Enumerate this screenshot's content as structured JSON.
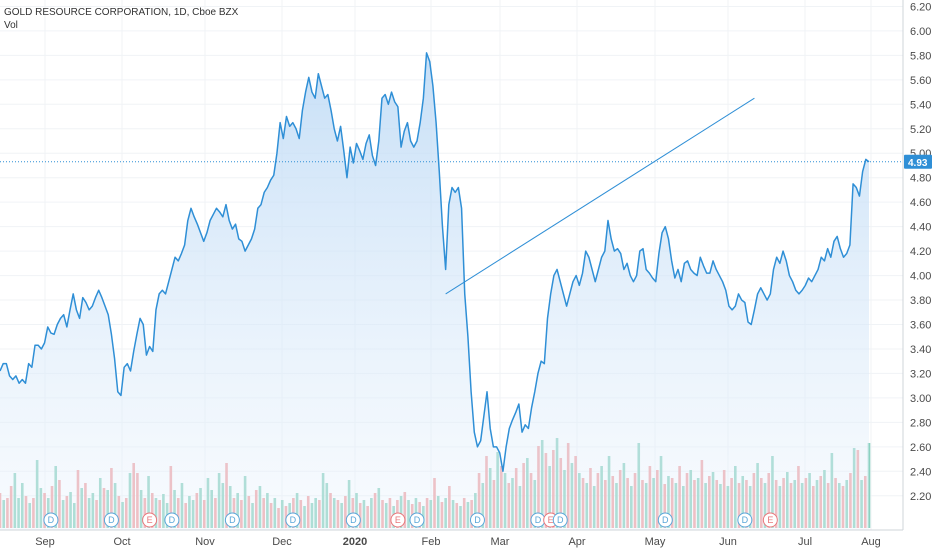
{
  "header": {
    "title": "GOLD RESOURCE CORPORATION, 1D, Cboe BZX",
    "subtitle": "Vol"
  },
  "colors": {
    "line": "#2f8fd6",
    "fill": "#cfe4f8",
    "vol_up": "#7fcdb9",
    "vol_down": "#f0999b",
    "current_tag": "#2f8fd6"
  },
  "chart_data": {
    "type": "area",
    "ylim": [
      2.1,
      6.22
    ],
    "ytick_values": [
      2.2,
      2.4,
      2.6,
      2.8,
      3.0,
      3.2,
      3.4,
      3.6,
      3.8,
      4.0,
      4.2,
      4.4,
      4.6,
      4.8,
      5.0,
      5.2,
      5.4,
      5.6,
      5.8,
      6.0,
      6.2
    ],
    "ytick_labels": [
      "2.20",
      "2.40",
      "2.60",
      "2.80",
      "3.00",
      "3.20",
      "3.40",
      "3.60",
      "3.80",
      "4.00",
      "4.20",
      "4.40",
      "4.60",
      "4.80",
      "5.00",
      "5.20",
      "5.40",
      "5.60",
      "5.80",
      "6.00",
      "6.20"
    ],
    "month_labels": [
      "Sep",
      "Oct",
      "Nov",
      "Dec",
      "2020",
      "Feb",
      "Mar",
      "Apr",
      "May",
      "Jun",
      "Jul",
      "Aug"
    ],
    "current_price": 4.93,
    "current_price_label": "4.93",
    "trendline": {
      "from": {
        "index": 140,
        "value": 3.85
      },
      "to": {
        "index": 237,
        "value": 5.45
      }
    },
    "close": [
      3.22,
      3.28,
      3.28,
      3.18,
      3.15,
      3.18,
      3.12,
      3.15,
      3.12,
      3.28,
      3.25,
      3.43,
      3.43,
      3.4,
      3.45,
      3.58,
      3.53,
      3.52,
      3.6,
      3.65,
      3.68,
      3.58,
      3.72,
      3.85,
      3.72,
      3.65,
      3.82,
      3.78,
      3.72,
      3.75,
      3.82,
      3.88,
      3.82,
      3.75,
      3.68,
      3.52,
      3.32,
      3.05,
      3.02,
      3.25,
      3.28,
      3.22,
      3.38,
      3.52,
      3.65,
      3.6,
      3.35,
      3.42,
      3.38,
      3.72,
      3.85,
      3.88,
      3.85,
      3.95,
      4.05,
      4.15,
      4.12,
      4.18,
      4.25,
      4.45,
      4.55,
      4.48,
      4.42,
      4.35,
      4.28,
      4.35,
      4.45,
      4.5,
      4.55,
      4.52,
      4.48,
      4.58,
      4.45,
      4.38,
      4.42,
      4.3,
      4.28,
      4.2,
      4.25,
      4.3,
      4.38,
      4.55,
      4.58,
      4.68,
      4.72,
      4.78,
      4.82,
      5.0,
      5.25,
      5.12,
      5.3,
      5.22,
      5.25,
      5.2,
      5.12,
      5.35,
      5.5,
      5.62,
      5.5,
      5.45,
      5.65,
      5.55,
      5.45,
      5.48,
      5.35,
      5.2,
      5.1,
      5.22,
      5.02,
      4.8,
      5.05,
      4.92,
      5.08,
      5.02,
      4.95,
      5.08,
      5.15,
      4.98,
      4.9,
      5.1,
      5.45,
      5.48,
      5.4,
      5.5,
      5.42,
      5.38,
      5.05,
      5.18,
      5.25,
      5.1,
      5.05,
      5.1,
      5.25,
      5.45,
      5.82,
      5.75,
      5.55,
      5.25,
      4.85,
      4.4,
      4.05,
      4.58,
      4.72,
      4.68,
      4.72,
      4.55,
      3.85,
      3.5,
      3.05,
      2.72,
      2.6,
      2.65,
      2.85,
      3.05,
      2.75,
      2.6,
      2.6,
      2.55,
      2.4,
      2.6,
      2.75,
      2.82,
      2.88,
      2.95,
      2.72,
      2.78,
      2.75,
      2.92,
      3.05,
      3.2,
      3.3,
      3.28,
      3.65,
      3.85,
      4.0,
      4.05,
      3.95,
      3.85,
      3.75,
      3.85,
      3.95,
      4.0,
      3.92,
      4.02,
      4.2,
      4.15,
      4.05,
      3.95,
      4.05,
      4.15,
      4.2,
      4.45,
      4.3,
      4.2,
      4.22,
      4.18,
      4.05,
      4.1,
      4.0,
      3.95,
      4.0,
      4.2,
      4.22,
      4.05,
      4.02,
      3.98,
      3.95,
      4.18,
      4.35,
      4.4,
      4.3,
      4.12,
      3.98,
      4.05,
      3.95,
      4.1,
      4.12,
      4.05,
      4.02,
      4.0,
      4.15,
      4.08,
      4.02,
      4.02,
      4.12,
      4.05,
      4.0,
      3.95,
      3.88,
      3.75,
      3.72,
      3.75,
      3.85,
      3.8,
      3.78,
      3.62,
      3.6,
      3.72,
      3.85,
      3.9,
      3.85,
      3.8,
      3.85,
      4.05,
      4.15,
      4.1,
      4.2,
      4.12,
      4.0,
      3.95,
      3.88,
      3.85,
      3.88,
      3.92,
      3.98,
      3.95,
      4.0,
      4.05,
      4.15,
      4.12,
      4.22,
      4.15,
      4.28,
      4.32,
      4.22,
      4.15,
      4.18,
      4.25,
      4.75,
      4.72,
      4.65,
      4.85,
      4.95,
      4.93
    ]
  },
  "volume": [
    {
      "up": false,
      "h": 0.35
    },
    {
      "up": true,
      "h": 0.28
    },
    {
      "up": false,
      "h": 0.3
    },
    {
      "up": false,
      "h": 0.42
    },
    {
      "up": true,
      "h": 0.55
    },
    {
      "up": true,
      "h": 0.3
    },
    {
      "up": true,
      "h": 0.45
    },
    {
      "up": false,
      "h": 0.32
    },
    {
      "up": true,
      "h": 0.25
    },
    {
      "up": false,
      "h": 0.3
    },
    {
      "up": true,
      "h": 0.68
    },
    {
      "up": true,
      "h": 0.4
    },
    {
      "up": false,
      "h": 0.35
    },
    {
      "up": true,
      "h": 0.3
    },
    {
      "up": false,
      "h": 0.42
    },
    {
      "up": true,
      "h": 0.62
    },
    {
      "up": false,
      "h": 0.48
    },
    {
      "up": true,
      "h": 0.28
    },
    {
      "up": false,
      "h": 0.32
    },
    {
      "up": true,
      "h": 0.36
    },
    {
      "up": true,
      "h": 0.25
    },
    {
      "up": false,
      "h": 0.58
    },
    {
      "up": true,
      "h": 0.4
    },
    {
      "up": false,
      "h": 0.45
    },
    {
      "up": true,
      "h": 0.3
    },
    {
      "up": true,
      "h": 0.35
    },
    {
      "up": false,
      "h": 0.28
    },
    {
      "up": true,
      "h": 0.5
    },
    {
      "up": false,
      "h": 0.4
    },
    {
      "up": true,
      "h": 0.38
    },
    {
      "up": false,
      "h": 0.6
    },
    {
      "up": true,
      "h": 0.45
    },
    {
      "up": false,
      "h": 0.32
    },
    {
      "up": true,
      "h": 0.26
    },
    {
      "up": false,
      "h": 0.3
    },
    {
      "up": true,
      "h": 0.55
    },
    {
      "up": false,
      "h": 0.65
    },
    {
      "up": false,
      "h": 0.55
    },
    {
      "up": true,
      "h": 0.38
    },
    {
      "up": false,
      "h": 0.3
    },
    {
      "up": true,
      "h": 0.52
    },
    {
      "up": false,
      "h": 0.35
    },
    {
      "up": true,
      "h": 0.3
    },
    {
      "up": false,
      "h": 0.28
    },
    {
      "up": true,
      "h": 0.34
    },
    {
      "up": true,
      "h": 0.25
    },
    {
      "up": false,
      "h": 0.62
    },
    {
      "up": true,
      "h": 0.38
    },
    {
      "up": false,
      "h": 0.3
    },
    {
      "up": true,
      "h": 0.45
    },
    {
      "up": false,
      "h": 0.25
    },
    {
      "up": true,
      "h": 0.32
    },
    {
      "up": true,
      "h": 0.28
    },
    {
      "up": false,
      "h": 0.35
    },
    {
      "up": true,
      "h": 0.4
    },
    {
      "up": false,
      "h": 0.28
    },
    {
      "up": true,
      "h": 0.5
    },
    {
      "up": true,
      "h": 0.38
    },
    {
      "up": false,
      "h": 0.3
    },
    {
      "up": true,
      "h": 0.55
    },
    {
      "up": true,
      "h": 0.45
    },
    {
      "up": false,
      "h": 0.65
    },
    {
      "up": true,
      "h": 0.42
    },
    {
      "up": false,
      "h": 0.3
    },
    {
      "up": true,
      "h": 0.35
    },
    {
      "up": false,
      "h": 0.28
    },
    {
      "up": true,
      "h": 0.52
    },
    {
      "up": false,
      "h": 0.32
    },
    {
      "up": true,
      "h": 0.25
    },
    {
      "up": false,
      "h": 0.38
    },
    {
      "up": true,
      "h": 0.42
    },
    {
      "up": false,
      "h": 0.3
    },
    {
      "up": true,
      "h": 0.35
    },
    {
      "up": false,
      "h": 0.25
    },
    {
      "up": true,
      "h": 0.3
    },
    {
      "up": false,
      "h": 0.2
    },
    {
      "up": true,
      "h": 0.28
    },
    {
      "up": false,
      "h": 0.22
    },
    {
      "up": true,
      "h": 0.25
    },
    {
      "up": false,
      "h": 0.3
    },
    {
      "up": true,
      "h": 0.35
    },
    {
      "up": false,
      "h": 0.28
    },
    {
      "up": true,
      "h": 0.22
    },
    {
      "up": false,
      "h": 0.32
    },
    {
      "up": true,
      "h": 0.25
    },
    {
      "up": true,
      "h": 0.3
    },
    {
      "up": false,
      "h": 0.28
    },
    {
      "up": true,
      "h": 0.55
    },
    {
      "up": true,
      "h": 0.45
    },
    {
      "up": false,
      "h": 0.35
    },
    {
      "up": true,
      "h": 0.3
    },
    {
      "up": false,
      "h": 0.28
    },
    {
      "up": true,
      "h": 0.25
    },
    {
      "up": false,
      "h": 0.32
    },
    {
      "up": true,
      "h": 0.48
    },
    {
      "up": false,
      "h": 0.3
    },
    {
      "up": true,
      "h": 0.35
    },
    {
      "up": false,
      "h": 0.25
    },
    {
      "up": true,
      "h": 0.28
    },
    {
      "up": false,
      "h": 0.22
    },
    {
      "up": true,
      "h": 0.3
    },
    {
      "up": false,
      "h": 0.35
    },
    {
      "up": true,
      "h": 0.4
    },
    {
      "up": false,
      "h": 0.28
    },
    {
      "up": true,
      "h": 0.25
    },
    {
      "up": false,
      "h": 0.3
    },
    {
      "up": true,
      "h": 0.22
    },
    {
      "up": false,
      "h": 0.28
    },
    {
      "up": true,
      "h": 0.32
    },
    {
      "up": false,
      "h": 0.36
    },
    {
      "up": true,
      "h": 0.28
    },
    {
      "up": false,
      "h": 0.24
    },
    {
      "up": true,
      "h": 0.3
    },
    {
      "up": false,
      "h": 0.26
    },
    {
      "up": true,
      "h": 0.22
    },
    {
      "up": false,
      "h": 0.3
    },
    {
      "up": true,
      "h": 0.28
    },
    {
      "up": false,
      "h": 0.5
    },
    {
      "up": true,
      "h": 0.32
    },
    {
      "up": false,
      "h": 0.26
    },
    {
      "up": true,
      "h": 0.3
    },
    {
      "up": false,
      "h": 0.42
    },
    {
      "up": true,
      "h": 0.28
    },
    {
      "up": false,
      "h": 0.25
    },
    {
      "up": true,
      "h": 0.22
    },
    {
      "up": false,
      "h": 0.3
    },
    {
      "up": true,
      "h": 0.26
    },
    {
      "up": false,
      "h": 0.28
    },
    {
      "up": true,
      "h": 0.35
    },
    {
      "up": false,
      "h": 0.55
    },
    {
      "up": true,
      "h": 0.45
    },
    {
      "up": false,
      "h": 0.72
    },
    {
      "up": true,
      "h": 0.6
    },
    {
      "up": false,
      "h": 0.48
    },
    {
      "up": true,
      "h": 0.76
    },
    {
      "up": false,
      "h": 0.62
    },
    {
      "up": true,
      "h": 0.55
    },
    {
      "up": false,
      "h": 0.45
    },
    {
      "up": true,
      "h": 0.5
    },
    {
      "up": false,
      "h": 0.6
    },
    {
      "up": true,
      "h": 0.42
    },
    {
      "up": false,
      "h": 0.65
    },
    {
      "up": true,
      "h": 0.7
    },
    {
      "up": false,
      "h": 0.55
    },
    {
      "up": true,
      "h": 0.48
    },
    {
      "up": false,
      "h": 0.82
    },
    {
      "up": true,
      "h": 0.88
    },
    {
      "up": false,
      "h": 0.75
    },
    {
      "up": true,
      "h": 0.62
    },
    {
      "up": false,
      "h": 0.78
    },
    {
      "up": true,
      "h": 0.9
    },
    {
      "up": false,
      "h": 0.7
    },
    {
      "up": true,
      "h": 0.58
    },
    {
      "up": false,
      "h": 0.85
    },
    {
      "up": true,
      "h": 0.65
    },
    {
      "up": false,
      "h": 0.72
    },
    {
      "up": true,
      "h": 0.55
    },
    {
      "up": false,
      "h": 0.5
    },
    {
      "up": true,
      "h": 0.45
    },
    {
      "up": false,
      "h": 0.6
    },
    {
      "up": true,
      "h": 0.42
    },
    {
      "up": false,
      "h": 0.55
    },
    {
      "up": true,
      "h": 0.62
    },
    {
      "up": false,
      "h": 0.48
    },
    {
      "up": true,
      "h": 0.72
    },
    {
      "up": false,
      "h": 0.52
    },
    {
      "up": true,
      "h": 0.45
    },
    {
      "up": false,
      "h": 0.58
    },
    {
      "up": true,
      "h": 0.65
    },
    {
      "up": false,
      "h": 0.5
    },
    {
      "up": true,
      "h": 0.42
    },
    {
      "up": false,
      "h": 0.55
    },
    {
      "up": true,
      "h": 0.85
    },
    {
      "up": false,
      "h": 0.48
    },
    {
      "up": true,
      "h": 0.45
    },
    {
      "up": false,
      "h": 0.62
    },
    {
      "up": true,
      "h": 0.5
    },
    {
      "up": false,
      "h": 0.58
    },
    {
      "up": true,
      "h": 0.72
    },
    {
      "up": false,
      "h": 0.44
    },
    {
      "up": true,
      "h": 0.52
    },
    {
      "up": false,
      "h": 0.5
    },
    {
      "up": true,
      "h": 0.45
    },
    {
      "up": false,
      "h": 0.62
    },
    {
      "up": true,
      "h": 0.42
    },
    {
      "up": false,
      "h": 0.55
    },
    {
      "up": true,
      "h": 0.58
    },
    {
      "up": false,
      "h": 0.48
    },
    {
      "up": true,
      "h": 0.5
    },
    {
      "up": false,
      "h": 0.68
    },
    {
      "up": true,
      "h": 0.45
    },
    {
      "up": false,
      "h": 0.52
    },
    {
      "up": true,
      "h": 0.56
    },
    {
      "up": false,
      "h": 0.48
    },
    {
      "up": true,
      "h": 0.44
    },
    {
      "up": false,
      "h": 0.58
    },
    {
      "up": true,
      "h": 0.42
    },
    {
      "up": false,
      "h": 0.5
    },
    {
      "up": true,
      "h": 0.62
    },
    {
      "up": false,
      "h": 0.45
    },
    {
      "up": true,
      "h": 0.52
    },
    {
      "up": false,
      "h": 0.48
    },
    {
      "up": true,
      "h": 0.42
    },
    {
      "up": false,
      "h": 0.55
    },
    {
      "up": true,
      "h": 0.65
    },
    {
      "up": false,
      "h": 0.5
    },
    {
      "up": true,
      "h": 0.45
    },
    {
      "up": false,
      "h": 0.55
    },
    {
      "up": true,
      "h": 0.72
    },
    {
      "up": false,
      "h": 0.48
    },
    {
      "up": true,
      "h": 0.42
    },
    {
      "up": false,
      "h": 0.5
    },
    {
      "up": true,
      "h": 0.56
    },
    {
      "up": false,
      "h": 0.45
    },
    {
      "up": true,
      "h": 0.48
    },
    {
      "up": false,
      "h": 0.62
    },
    {
      "up": true,
      "h": 0.45
    },
    {
      "up": false,
      "h": 0.5
    },
    {
      "up": true,
      "h": 0.55
    },
    {
      "up": false,
      "h": 0.42
    },
    {
      "up": true,
      "h": 0.48
    },
    {
      "up": false,
      "h": 0.52
    },
    {
      "up": true,
      "h": 0.58
    },
    {
      "up": false,
      "h": 0.45
    },
    {
      "up": true,
      "h": 0.75
    },
    {
      "up": false,
      "h": 0.5
    },
    {
      "up": true,
      "h": 0.45
    },
    {
      "up": false,
      "h": 0.42
    },
    {
      "up": true,
      "h": 0.48
    },
    {
      "up": false,
      "h": 0.55
    },
    {
      "up": true,
      "h": 0.8
    },
    {
      "up": false,
      "h": 0.78
    },
    {
      "up": true,
      "h": 0.48
    },
    {
      "up": false,
      "h": 0.52
    },
    {
      "up": true,
      "h": 0.85
    }
  ],
  "events": [
    {
      "type": "D",
      "index": 16
    },
    {
      "type": "D",
      "index": 35
    },
    {
      "type": "E",
      "index": 47
    },
    {
      "type": "D",
      "index": 54
    },
    {
      "type": "D",
      "index": 73
    },
    {
      "type": "D",
      "index": 92
    },
    {
      "type": "D",
      "index": 111
    },
    {
      "type": "E",
      "index": 125
    },
    {
      "type": "D",
      "index": 131
    },
    {
      "type": "D",
      "index": 150
    },
    {
      "type": "D",
      "index": 169
    },
    {
      "type": "E",
      "index": 173
    },
    {
      "type": "D",
      "index": 176
    },
    {
      "type": "D",
      "index": 209
    },
    {
      "type": "D",
      "index": 234
    },
    {
      "type": "E",
      "index": 242
    }
  ]
}
